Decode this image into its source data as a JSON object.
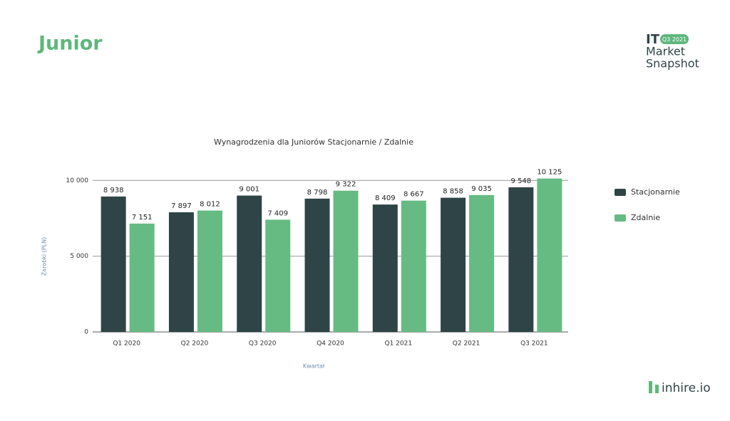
{
  "slide": {
    "heading": "Junior",
    "brand_it": "IT",
    "brand_badge": "Q3 2021",
    "brand_line1": "Market",
    "brand_line2": "Snapshot",
    "logo": "inhire.io"
  },
  "chart_data": {
    "type": "bar",
    "title": "Wynagrodzenia dla Juniorów Stacjonarnie / Zdalnie",
    "x_label": "Kwartał",
    "y_label": "Zarobki (PLN)",
    "categories": [
      "Q1 2020",
      "Q2 2020",
      "Q3 2020",
      "Q4 2020",
      "Q1 2021",
      "Q2 2021",
      "Q3 2021"
    ],
    "series": [
      {
        "name": "Stacjonarnie",
        "color": "#2f4446",
        "values": [
          8938,
          7897,
          9001,
          8798,
          8409,
          8858,
          9548
        ],
        "value_labels": [
          "8 938",
          "7 897",
          "9 001",
          "8 798",
          "8 409",
          "8 858",
          "9 548"
        ]
      },
      {
        "name": "Zdalnie",
        "color": "#66bb82",
        "values": [
          7151,
          8012,
          7409,
          9322,
          8667,
          9035,
          10125
        ],
        "value_labels": [
          "7 151",
          "8 012",
          "7 409",
          "9 322",
          "8 667",
          "9 035",
          "10 125"
        ]
      }
    ],
    "ylim": [
      0,
      11000
    ],
    "yticks": [
      {
        "value": 0,
        "label": "0"
      },
      {
        "value": 5000,
        "label": "5 000"
      },
      {
        "value": 10000,
        "label": "10 000"
      }
    ],
    "grid": true,
    "legend": "right"
  }
}
